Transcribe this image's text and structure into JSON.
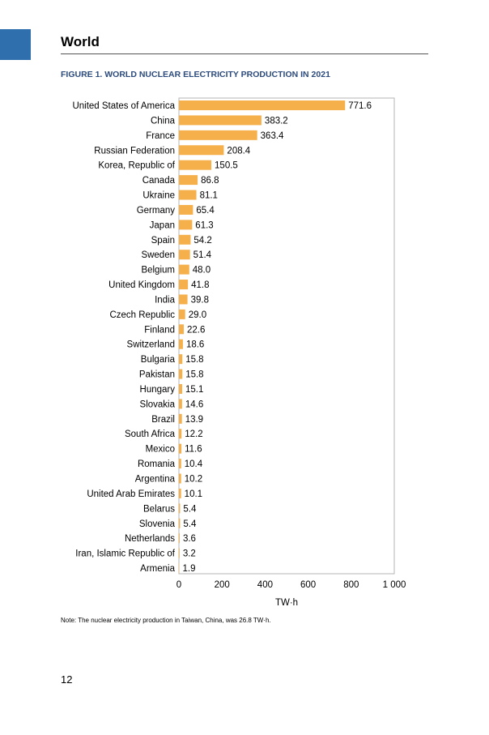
{
  "page": {
    "section_title": "World",
    "figure_title": "FIGURE 1. WORLD NUCLEAR ELECTRICITY PRODUCTION IN 2021",
    "note": "Note: The nuclear electricity production in Taiwan, China, was 26.8 TW·h.",
    "page_number": "12"
  },
  "colors": {
    "bar": "#f5b04c",
    "accent": "#2f6fae",
    "title_blue": "#2c4b7c"
  },
  "chart_data": {
    "type": "bar",
    "orientation": "horizontal",
    "categories": [
      "United States of America",
      "China",
      "France",
      "Russian Federation",
      "Korea, Republic of",
      "Canada",
      "Ukraine",
      "Germany",
      "Japan",
      "Spain",
      "Sweden",
      "Belgium",
      "United Kingdom",
      "India",
      "Czech Republic",
      "Finland",
      "Switzerland",
      "Bulgaria",
      "Pakistan",
      "Hungary",
      "Slovakia",
      "Brazil",
      "South Africa",
      "Mexico",
      "Romania",
      "Argentina",
      "United Arab Emirates",
      "Belarus",
      "Slovenia",
      "Netherlands",
      "Iran, Islamic Republic of",
      "Armenia"
    ],
    "values": [
      771.6,
      383.2,
      363.4,
      208.4,
      150.5,
      86.8,
      81.1,
      65.4,
      61.3,
      54.2,
      51.4,
      48.0,
      41.8,
      39.8,
      29.0,
      22.6,
      18.6,
      15.8,
      15.8,
      15.1,
      14.6,
      13.9,
      12.2,
      11.6,
      10.4,
      10.2,
      10.1,
      5.4,
      5.4,
      3.6,
      3.2,
      1.9
    ],
    "value_labels": [
      "771.6",
      "383.2",
      "363.4",
      "208.4",
      "150.5",
      "86.8",
      "81.1",
      "65.4",
      "61.3",
      "54.2",
      "51.4",
      "48.0",
      "41.8",
      "39.8",
      "29.0",
      "22.6",
      "18.6",
      "15.8",
      "15.8",
      "15.1",
      "14.6",
      "13.9",
      "12.2",
      "11.6",
      "10.4",
      "10.2",
      "10.1",
      "5.4",
      "5.4",
      "3.6",
      "3.2",
      "1.9"
    ],
    "xlim": [
      0,
      1000
    ],
    "xticks": [
      0,
      200,
      400,
      600,
      800,
      1000
    ],
    "xtick_labels": [
      "0",
      "200",
      "400",
      "600",
      "800",
      "1 000"
    ],
    "xlabel": "TW·h",
    "ylabel": "",
    "grid": false,
    "legend": "none"
  }
}
